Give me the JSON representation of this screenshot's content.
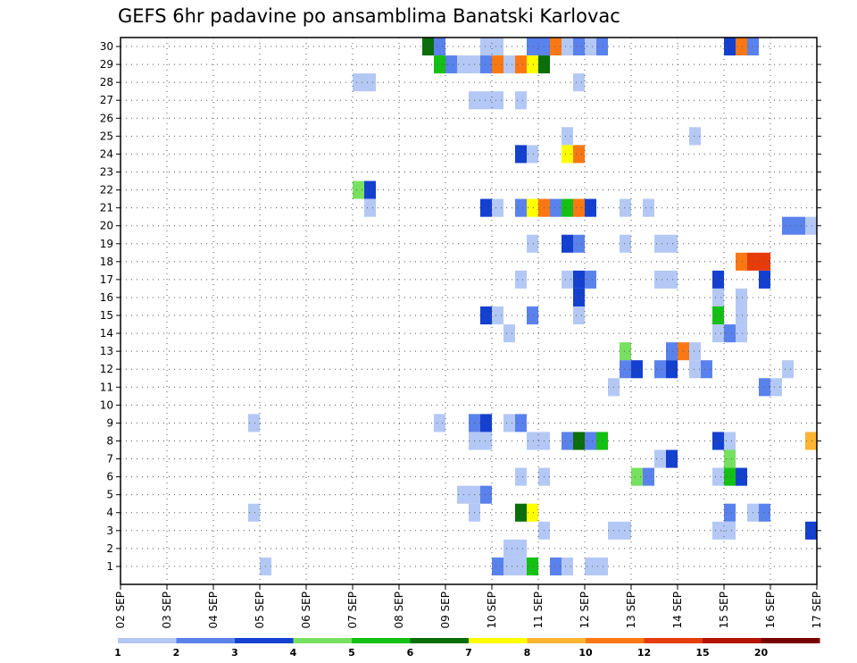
{
  "chart_data": {
    "type": "heatmap",
    "title": "GEFS 6hr padavine po ansamblima Banatski Karlovac",
    "y_categories": [
      "1",
      "2",
      "3",
      "4",
      "5",
      "6",
      "7",
      "8",
      "9",
      "10",
      "11",
      "12",
      "13",
      "14",
      "15",
      "16",
      "17",
      "18",
      "19",
      "20",
      "21",
      "22",
      "23",
      "24",
      "25",
      "26",
      "27",
      "28",
      "29",
      "30"
    ],
    "x_tick_labels": [
      "02 SEP",
      "03 SEP",
      "04 SEP",
      "05 SEP",
      "06 SEP",
      "07 SEP",
      "08 SEP",
      "09 SEP",
      "10 SEP",
      "11 SEP",
      "12 SEP",
      "13 SEP",
      "14 SEP",
      "15 SEP",
      "16 SEP",
      "17 SEP"
    ],
    "x_steps_per_day": 4,
    "x_total_steps": 60,
    "grid": true,
    "colorbar": {
      "position": "bottom",
      "labels": [
        "1",
        "2",
        "3",
        "4",
        "5",
        "6",
        "7",
        "8",
        "10",
        "12",
        "15",
        "20"
      ],
      "colors": [
        "#b4c8f5",
        "#5a82ec",
        "#1440d0",
        "#78e060",
        "#14c014",
        "#0a6e0a",
        "#ffff00",
        "#ffb432",
        "#fa7814",
        "#e63c0a",
        "#b41400",
        "#780000"
      ]
    },
    "cells": [
      {
        "m": 30,
        "x": 26.5,
        "v": 6
      },
      {
        "m": 30,
        "x": 27.5,
        "v": 2
      },
      {
        "m": 30,
        "x": 31.5,
        "v": 1
      },
      {
        "m": 30,
        "x": 32.5,
        "v": 1
      },
      {
        "m": 30,
        "x": 35.5,
        "v": 2
      },
      {
        "m": 30,
        "x": 36.5,
        "v": 2
      },
      {
        "m": 30,
        "x": 37.5,
        "v": 10
      },
      {
        "m": 30,
        "x": 38.5,
        "v": 1
      },
      {
        "m": 30,
        "x": 39.5,
        "v": 2
      },
      {
        "m": 30,
        "x": 40.5,
        "v": 1
      },
      {
        "m": 30,
        "x": 41.5,
        "v": 2
      },
      {
        "m": 30,
        "x": 52.5,
        "v": 3
      },
      {
        "m": 30,
        "x": 53.5,
        "v": 10
      },
      {
        "m": 30,
        "x": 54.5,
        "v": 2
      },
      {
        "m": 29,
        "x": 27.5,
        "v": 5
      },
      {
        "m": 29,
        "x": 28.5,
        "v": 2
      },
      {
        "m": 29,
        "x": 29.5,
        "v": 1
      },
      {
        "m": 29,
        "x": 30.5,
        "v": 1
      },
      {
        "m": 29,
        "x": 31.5,
        "v": 2
      },
      {
        "m": 29,
        "x": 32.5,
        "v": 10
      },
      {
        "m": 29,
        "x": 33.5,
        "v": 1
      },
      {
        "m": 29,
        "x": 34.5,
        "v": 10
      },
      {
        "m": 29,
        "x": 35.5,
        "v": 7
      },
      {
        "m": 29,
        "x": 36.5,
        "v": 6
      },
      {
        "m": 28,
        "x": 20.5,
        "v": 1
      },
      {
        "m": 28,
        "x": 21.5,
        "v": 1
      },
      {
        "m": 28,
        "x": 39.5,
        "v": 1
      },
      {
        "m": 27,
        "x": 30.5,
        "v": 1
      },
      {
        "m": 27,
        "x": 31.5,
        "v": 1
      },
      {
        "m": 27,
        "x": 32.5,
        "v": 1
      },
      {
        "m": 27,
        "x": 34.5,
        "v": 1
      },
      {
        "m": 25,
        "x": 38.5,
        "v": 1
      },
      {
        "m": 25,
        "x": 49.5,
        "v": 1
      },
      {
        "m": 24,
        "x": 34.5,
        "v": 3
      },
      {
        "m": 24,
        "x": 35.5,
        "v": 1
      },
      {
        "m": 24,
        "x": 38.5,
        "v": 7
      },
      {
        "m": 24,
        "x": 39.5,
        "v": 10
      },
      {
        "m": 22,
        "x": 20.5,
        "v": 4
      },
      {
        "m": 22,
        "x": 21.5,
        "v": 3
      },
      {
        "m": 21,
        "x": 21.5,
        "v": 1
      },
      {
        "m": 21,
        "x": 31.5,
        "v": 3
      },
      {
        "m": 21,
        "x": 32.5,
        "v": 1
      },
      {
        "m": 21,
        "x": 34.5,
        "v": 2
      },
      {
        "m": 21,
        "x": 35.5,
        "v": 7
      },
      {
        "m": 21,
        "x": 36.5,
        "v": 10
      },
      {
        "m": 21,
        "x": 37.5,
        "v": 2
      },
      {
        "m": 21,
        "x": 38.5,
        "v": 5
      },
      {
        "m": 21,
        "x": 39.5,
        "v": 10
      },
      {
        "m": 21,
        "x": 40.5,
        "v": 3
      },
      {
        "m": 21,
        "x": 43.5,
        "v": 1
      },
      {
        "m": 21,
        "x": 45.5,
        "v": 1
      },
      {
        "m": 20,
        "x": 57.5,
        "v": 2
      },
      {
        "m": 20,
        "x": 58.5,
        "v": 2
      },
      {
        "m": 20,
        "x": 59.5,
        "v": 1
      },
      {
        "m": 19,
        "x": 35.5,
        "v": 1
      },
      {
        "m": 19,
        "x": 38.5,
        "v": 3
      },
      {
        "m": 19,
        "x": 39.5,
        "v": 2
      },
      {
        "m": 19,
        "x": 43.5,
        "v": 1
      },
      {
        "m": 19,
        "x": 46.5,
        "v": 1
      },
      {
        "m": 19,
        "x": 47.5,
        "v": 1
      },
      {
        "m": 18,
        "x": 53.5,
        "v": 10
      },
      {
        "m": 18,
        "x": 54.5,
        "v": 12
      },
      {
        "m": 18,
        "x": 55.5,
        "v": 12
      },
      {
        "m": 17,
        "x": 34.5,
        "v": 1
      },
      {
        "m": 17,
        "x": 38.5,
        "v": 1
      },
      {
        "m": 17,
        "x": 39.5,
        "v": 3
      },
      {
        "m": 17,
        "x": 40.5,
        "v": 2
      },
      {
        "m": 17,
        "x": 46.5,
        "v": 1
      },
      {
        "m": 17,
        "x": 47.5,
        "v": 1
      },
      {
        "m": 17,
        "x": 51.5,
        "v": 3
      },
      {
        "m": 17,
        "x": 55.5,
        "v": 3
      },
      {
        "m": 16,
        "x": 39.5,
        "v": 3
      },
      {
        "m": 16,
        "x": 51.5,
        "v": 1
      },
      {
        "m": 16,
        "x": 53.5,
        "v": 1
      },
      {
        "m": 15,
        "x": 31.5,
        "v": 3
      },
      {
        "m": 15,
        "x": 32.5,
        "v": 1
      },
      {
        "m": 15,
        "x": 35.5,
        "v": 2
      },
      {
        "m": 15,
        "x": 39.5,
        "v": 1
      },
      {
        "m": 15,
        "x": 51.5,
        "v": 5
      },
      {
        "m": 15,
        "x": 53.5,
        "v": 1
      },
      {
        "m": 14,
        "x": 33.5,
        "v": 1
      },
      {
        "m": 14,
        "x": 51.5,
        "v": 1
      },
      {
        "m": 14,
        "x": 52.5,
        "v": 2
      },
      {
        "m": 14,
        "x": 53.5,
        "v": 1
      },
      {
        "m": 13,
        "x": 43.5,
        "v": 4
      },
      {
        "m": 13,
        "x": 47.5,
        "v": 2
      },
      {
        "m": 13,
        "x": 48.5,
        "v": 10
      },
      {
        "m": 13,
        "x": 49.5,
        "v": 1
      },
      {
        "m": 12,
        "x": 43.5,
        "v": 2
      },
      {
        "m": 12,
        "x": 44.5,
        "v": 3
      },
      {
        "m": 12,
        "x": 46.5,
        "v": 2
      },
      {
        "m": 12,
        "x": 47.5,
        "v": 3
      },
      {
        "m": 12,
        "x": 49.5,
        "v": 1
      },
      {
        "m": 12,
        "x": 50.5,
        "v": 2
      },
      {
        "m": 12,
        "x": 57.5,
        "v": 1
      },
      {
        "m": 11,
        "x": 42.5,
        "v": 1
      },
      {
        "m": 11,
        "x": 55.5,
        "v": 2
      },
      {
        "m": 11,
        "x": 56.5,
        "v": 1
      },
      {
        "m": 9,
        "x": 11.5,
        "v": 1
      },
      {
        "m": 9,
        "x": 27.5,
        "v": 1
      },
      {
        "m": 9,
        "x": 30.5,
        "v": 2
      },
      {
        "m": 9,
        "x": 31.5,
        "v": 3
      },
      {
        "m": 9,
        "x": 33.5,
        "v": 1
      },
      {
        "m": 9,
        "x": 34.5,
        "v": 2
      },
      {
        "m": 8,
        "x": 30.5,
        "v": 1
      },
      {
        "m": 8,
        "x": 31.5,
        "v": 1
      },
      {
        "m": 8,
        "x": 35.5,
        "v": 1
      },
      {
        "m": 8,
        "x": 36.5,
        "v": 1
      },
      {
        "m": 8,
        "x": 38.5,
        "v": 2
      },
      {
        "m": 8,
        "x": 39.5,
        "v": 6
      },
      {
        "m": 8,
        "x": 40.5,
        "v": 2
      },
      {
        "m": 8,
        "x": 41.5,
        "v": 5
      },
      {
        "m": 8,
        "x": 51.5,
        "v": 3
      },
      {
        "m": 8,
        "x": 52.5,
        "v": 1
      },
      {
        "m": 8,
        "x": 59.5,
        "v": 8
      },
      {
        "m": 7,
        "x": 46.5,
        "v": 1
      },
      {
        "m": 7,
        "x": 47.5,
        "v": 3
      },
      {
        "m": 7,
        "x": 52.5,
        "v": 4
      },
      {
        "m": 6,
        "x": 34.5,
        "v": 1
      },
      {
        "m": 6,
        "x": 36.5,
        "v": 1
      },
      {
        "m": 6,
        "x": 44.5,
        "v": 4
      },
      {
        "m": 6,
        "x": 45.5,
        "v": 2
      },
      {
        "m": 6,
        "x": 51.5,
        "v": 1
      },
      {
        "m": 6,
        "x": 52.5,
        "v": 5
      },
      {
        "m": 6,
        "x": 53.5,
        "v": 3
      },
      {
        "m": 5,
        "x": 29.5,
        "v": 1
      },
      {
        "m": 5,
        "x": 30.5,
        "v": 1
      },
      {
        "m": 5,
        "x": 31.5,
        "v": 2
      },
      {
        "m": 4,
        "x": 11.5,
        "v": 1
      },
      {
        "m": 4,
        "x": 30.5,
        "v": 1
      },
      {
        "m": 4,
        "x": 34.5,
        "v": 6
      },
      {
        "m": 4,
        "x": 35.5,
        "v": 7
      },
      {
        "m": 4,
        "x": 52.5,
        "v": 2
      },
      {
        "m": 4,
        "x": 54.5,
        "v": 1
      },
      {
        "m": 4,
        "x": 55.5,
        "v": 2
      },
      {
        "m": 3,
        "x": 36.5,
        "v": 1
      },
      {
        "m": 3,
        "x": 42.5,
        "v": 1
      },
      {
        "m": 3,
        "x": 43.5,
        "v": 1
      },
      {
        "m": 3,
        "x": 51.5,
        "v": 1
      },
      {
        "m": 3,
        "x": 52.5,
        "v": 1
      },
      {
        "m": 3,
        "x": 59.5,
        "v": 3
      },
      {
        "m": 2,
        "x": 33.5,
        "v": 1
      },
      {
        "m": 2,
        "x": 34.5,
        "v": 1
      },
      {
        "m": 1,
        "x": 12.5,
        "v": 1
      },
      {
        "m": 1,
        "x": 32.5,
        "v": 2
      },
      {
        "m": 1,
        "x": 33.5,
        "v": 1
      },
      {
        "m": 1,
        "x": 34.5,
        "v": 1
      },
      {
        "m": 1,
        "x": 35.5,
        "v": 5
      },
      {
        "m": 1,
        "x": 37.5,
        "v": 2
      },
      {
        "m": 1,
        "x": 38.5,
        "v": 1
      },
      {
        "m": 1,
        "x": 40.5,
        "v": 1
      },
      {
        "m": 1,
        "x": 41.5,
        "v": 1
      }
    ]
  }
}
